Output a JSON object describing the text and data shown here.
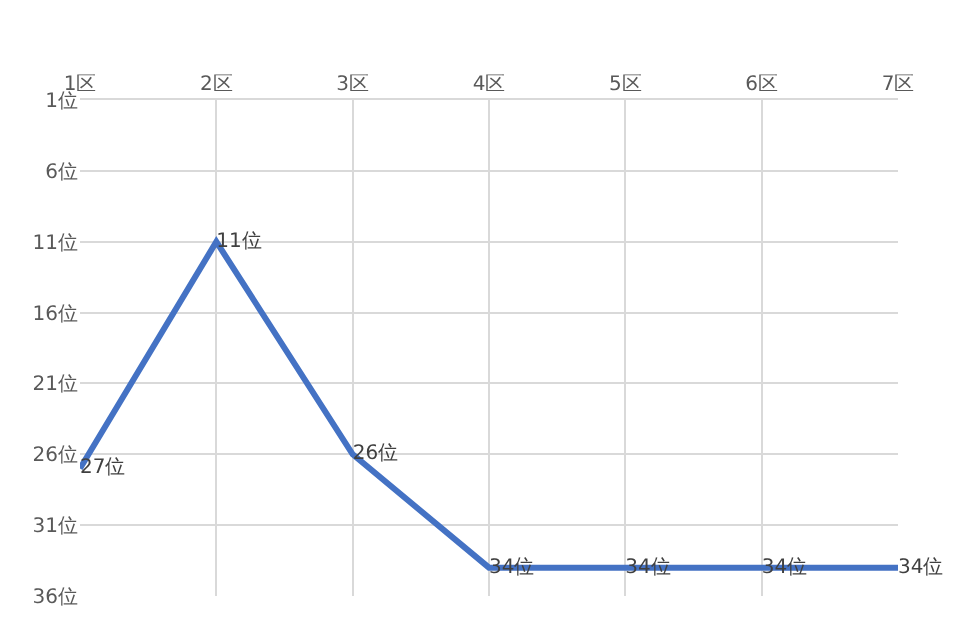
{
  "chart_data": {
    "type": "line",
    "categories": [
      "1区",
      "2区",
      "3区",
      "4区",
      "5区",
      "6区",
      "7区"
    ],
    "series": [
      {
        "color": "#4472c4",
        "values": [
          27,
          11,
          26,
          34,
          34,
          34,
          34
        ],
        "value_labels": [
          "27位",
          "11位",
          "26位",
          "34位",
          "34位",
          "34位",
          "34位"
        ]
      }
    ],
    "ylim": [
      36,
      1
    ],
    "yticks": [
      {
        "value": 1,
        "label": "1位"
      },
      {
        "value": 6,
        "label": "6位"
      },
      {
        "value": 11,
        "label": "11位"
      },
      {
        "value": 16,
        "label": "16位"
      },
      {
        "value": 21,
        "label": "21位"
      },
      {
        "value": 26,
        "label": "26位"
      },
      {
        "value": 31,
        "label": "31位"
      },
      {
        "value": 36,
        "label": "36位"
      }
    ],
    "grid": true,
    "legend": false,
    "marker": "none",
    "line_style": "solid"
  }
}
